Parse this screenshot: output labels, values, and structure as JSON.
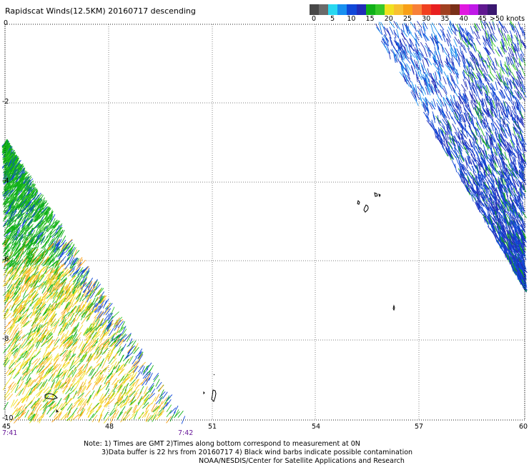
{
  "title": "Rapidscat Winds(12.5KM) 20160717 descending",
  "legend": {
    "swatches": [
      {
        "color": "#484848"
      },
      {
        "color": "#6a6a6a"
      },
      {
        "color": "#28d8f0"
      },
      {
        "color": "#1890f0"
      },
      {
        "color": "#1048d8"
      },
      {
        "color": "#202cb8"
      },
      {
        "color": "#10b018"
      },
      {
        "color": "#38c828"
      },
      {
        "color": "#f0e020"
      },
      {
        "color": "#f8c030"
      },
      {
        "color": "#f8a018"
      },
      {
        "color": "#f88038"
      },
      {
        "color": "#f04020"
      },
      {
        "color": "#e82020"
      },
      {
        "color": "#a04020"
      },
      {
        "color": "#7a3018"
      },
      {
        "color": "#e018e0"
      },
      {
        "color": "#c018e8"
      },
      {
        "color": "#601890"
      },
      {
        "color": "#3a1870"
      }
    ],
    "labels": [
      "0",
      "5",
      "10",
      "15",
      "20",
      "25",
      "30",
      "35",
      "40",
      "45",
      ">50 knots"
    ]
  },
  "axes": {
    "y_ticks": [
      "0",
      "-2",
      "-4",
      "-6",
      "-8",
      "-10"
    ],
    "x_ticks": [
      "45",
      "48",
      "51",
      "54",
      "57",
      "60"
    ]
  },
  "times": {
    "left": "7:41",
    "right": "7:42"
  },
  "notes": {
    "line1": "Note: 1) Times are GMT 2)Times along bottom correspond to measurement at 0N",
    "line2": "3)Data buffer is 22 hrs from 20160717 4) Black wind barbs indicate possible contamination",
    "line3": "NOAA/NESDIS/Center for Satellite Applications and Research"
  }
}
